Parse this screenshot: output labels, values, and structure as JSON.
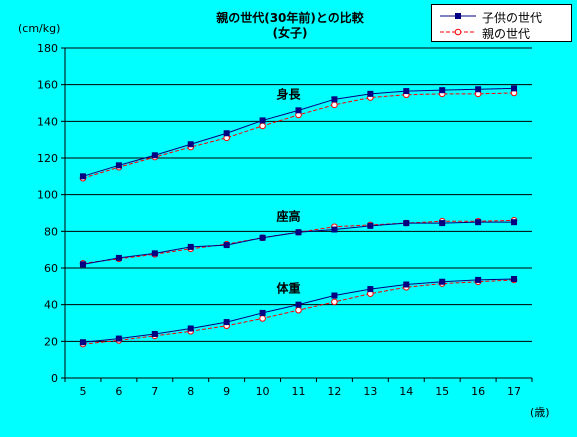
{
  "chart_data": {
    "type": "line",
    "title": "親の世代(30年前)との比較",
    "subtitle": "(女子)",
    "ylabel": "(cm/kg)",
    "xlabel": "(歳)",
    "ylim": [
      0,
      180
    ],
    "yticks": [
      "0",
      "20",
      "40",
      "60",
      "80",
      "100",
      "120",
      "140",
      "160",
      "180"
    ],
    "x": [
      "5",
      "6",
      "7",
      "8",
      "9",
      "10",
      "11",
      "12",
      "13",
      "14",
      "15",
      "16",
      "17"
    ],
    "grid": true,
    "legend_position": "top-right",
    "legend": [
      {
        "label": "子供の世代",
        "color": "#000080",
        "marker": "filled-square"
      },
      {
        "label": "親の世代",
        "color": "#ff0000",
        "marker": "open-circle"
      }
    ],
    "groups": [
      {
        "label": "身長",
        "series": [
          {
            "name": "子供の世代",
            "values": [
              110,
              116,
              121.5,
              127.5,
              133.5,
              140.5,
              146,
              152,
              155,
              156.5,
              157,
              157.5,
              158
            ]
          },
          {
            "name": "親の世代",
            "values": [
              109,
              115,
              120.5,
              126,
              131,
              137.5,
              143.5,
              149,
              153,
              154.5,
              155,
              155,
              155.5
            ]
          }
        ]
      },
      {
        "label": "座高",
        "series": [
          {
            "name": "子供の世代",
            "values": [
              62,
              65.5,
              68,
              71.5,
              72.5,
              76.5,
              79.5,
              81,
              83,
              84.5,
              84.5,
              85,
              85
            ]
          },
          {
            "name": "親の世代",
            "values": [
              62.5,
              65,
              67.5,
              70.5,
              73,
              76.5,
              79.5,
              82.5,
              83.5,
              84.5,
              85.5,
              85.5,
              86
            ]
          }
        ]
      },
      {
        "label": "体重",
        "series": [
          {
            "name": "子供の世代",
            "values": [
              19.5,
              21.5,
              24,
              27,
              30.5,
              35.5,
              40,
              45,
              48.5,
              51,
              52.5,
              53.5,
              54
            ]
          },
          {
            "name": "親の世代",
            "values": [
              18.5,
              20.5,
              23,
              25.5,
              28.5,
              32.5,
              37,
              41.5,
              46,
              49.5,
              51.5,
              52.5,
              53.5
            ]
          }
        ]
      }
    ]
  }
}
